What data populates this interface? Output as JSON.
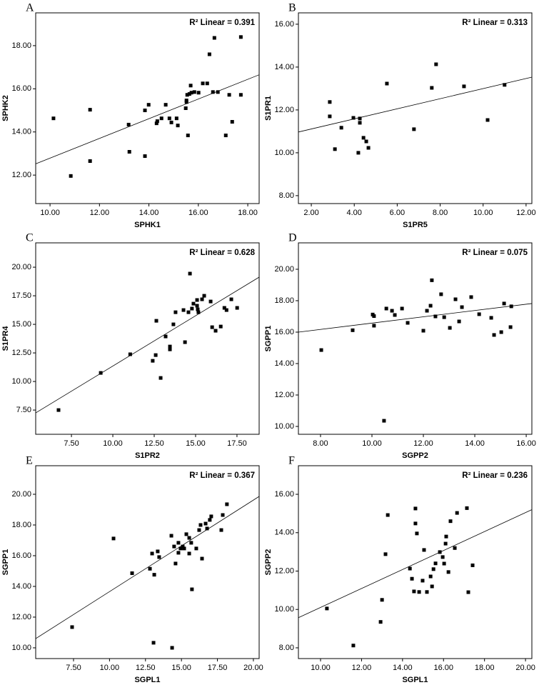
{
  "chart_data": [
    {
      "type": "scatter",
      "title": "A",
      "xlabel": "SPHK1",
      "ylabel": "SPHK2",
      "annotation": "R² Linear = 0.391",
      "color": "#000000",
      "x": [
        10.14,
        10.84,
        11.62,
        11.62,
        13.18,
        13.21,
        13.84,
        13.84,
        13.99,
        14.31,
        14.34,
        14.51,
        14.68,
        14.83,
        14.91,
        15.12,
        15.17,
        15.49,
        15.52,
        15.52,
        15.55,
        15.58,
        15.64,
        15.69,
        15.72,
        15.84,
        16.01,
        16.18,
        16.36,
        16.45,
        16.59,
        16.65,
        16.79,
        17.11,
        17.25,
        17.37,
        17.72,
        17.72
      ],
      "y": [
        14.63,
        11.96,
        15.03,
        12.65,
        14.34,
        13.08,
        15.0,
        12.88,
        15.26,
        14.4,
        14.5,
        14.63,
        15.26,
        14.63,
        14.44,
        14.63,
        14.3,
        15.1,
        15.39,
        15.46,
        15.72,
        13.84,
        15.76,
        16.15,
        15.82,
        15.85,
        15.82,
        16.25,
        16.25,
        17.6,
        15.85,
        18.36,
        15.85,
        13.84,
        15.72,
        14.47,
        18.4,
        15.72
      ],
      "fit_line": {
        "x": [
          9.42,
          18.46
        ],
        "y": [
          12.52,
          16.65
        ]
      },
      "xlim": [
        9.42,
        18.46
      ],
      "ylim": [
        10.68,
        19.52
      ],
      "xticks": [
        {
          "value": 10,
          "label": "10.00"
        },
        {
          "value": 12,
          "label": "12.00"
        },
        {
          "value": 14,
          "label": "14.00"
        },
        {
          "value": 16,
          "label": "16.00"
        },
        {
          "value": 18,
          "label": "18.00"
        }
      ],
      "yticks": [
        {
          "value": 12,
          "label": "12.00"
        },
        {
          "value": 14,
          "label": "14.00"
        },
        {
          "value": 16,
          "label": "16.00"
        },
        {
          "value": 18,
          "label": "18.00"
        }
      ]
    },
    {
      "type": "scatter",
      "title": "B",
      "xlabel": "S1PR5",
      "ylabel": "S1PR1",
      "annotation": "R² Linear = 0.313",
      "color": "#000000",
      "x": [
        2.86,
        2.86,
        3.1,
        3.4,
        3.96,
        4.19,
        4.26,
        4.26,
        4.43,
        4.56,
        4.66,
        5.52,
        6.78,
        7.61,
        7.81,
        9.11,
        10.21,
        11.0
      ],
      "y": [
        12.37,
        11.7,
        10.17,
        11.17,
        11.63,
        10.0,
        11.6,
        11.4,
        10.7,
        10.53,
        10.23,
        13.23,
        11.1,
        13.03,
        14.13,
        13.1,
        11.53,
        13.17
      ],
      "fit_line": {
        "x": [
          1.4,
          12.27
        ],
        "y": [
          10.97,
          13.53
        ]
      },
      "xlim": [
        1.4,
        12.27
      ],
      "ylim": [
        7.63,
        16.53
      ],
      "xticks": [
        {
          "value": 2,
          "label": "2.00"
        },
        {
          "value": 4,
          "label": "4.00"
        },
        {
          "value": 6,
          "label": "6.00"
        },
        {
          "value": 8,
          "label": "8.00"
        },
        {
          "value": 10,
          "label": "10.00"
        },
        {
          "value": 12,
          "label": "12.00"
        }
      ],
      "yticks": [
        {
          "value": 8,
          "label": "8.00"
        },
        {
          "value": 10,
          "label": "10.00"
        },
        {
          "value": 12,
          "label": "12.00"
        },
        {
          "value": 14,
          "label": "14.00"
        },
        {
          "value": 16,
          "label": "16.00"
        }
      ]
    },
    {
      "type": "scatter",
      "title": "C",
      "xlabel": "S1PR2",
      "ylabel": "S1PR4",
      "annotation": "R² Linear = 0.628",
      "color": "#000000",
      "x": [
        6.72,
        9.27,
        11.05,
        12.41,
        12.59,
        12.63,
        12.89,
        13.19,
        13.45,
        13.45,
        13.66,
        13.79,
        14.27,
        14.36,
        14.57,
        14.66,
        14.78,
        14.87,
        15.09,
        15.09,
        15.13,
        15.17,
        15.39,
        15.52,
        15.91,
        16.0,
        16.21,
        16.52,
        16.74,
        16.87,
        17.16,
        17.51
      ],
      "y": [
        7.5,
        10.75,
        12.38,
        11.81,
        12.31,
        15.31,
        10.31,
        13.94,
        13.06,
        12.81,
        15.0,
        16.06,
        16.25,
        13.44,
        16.06,
        19.44,
        16.38,
        16.81,
        16.63,
        17.13,
        16.31,
        16.06,
        17.19,
        17.5,
        17.0,
        14.75,
        14.44,
        14.81,
        16.44,
        16.25,
        17.19,
        16.44
      ],
      "fit_line": {
        "x": [
          5.34,
          18.84
        ],
        "y": [
          7.25,
          19.13
        ]
      },
      "xlim": [
        5.34,
        18.84
      ],
      "ylim": [
        5.38,
        22.13
      ],
      "xticks": [
        {
          "value": 7.5,
          "label": "7.50"
        },
        {
          "value": 10,
          "label": "10.00"
        },
        {
          "value": 12.5,
          "label": "12.50"
        },
        {
          "value": 15,
          "label": "15.00"
        },
        {
          "value": 17.5,
          "label": "17.50"
        }
      ],
      "yticks": [
        {
          "value": 7.5,
          "label": "7.50"
        },
        {
          "value": 10,
          "label": "10.00"
        },
        {
          "value": 12.5,
          "label": "12.50"
        },
        {
          "value": 15,
          "label": "15.00"
        },
        {
          "value": 17.5,
          "label": "17.50"
        },
        {
          "value": 20,
          "label": "20.00"
        }
      ]
    },
    {
      "type": "scatter",
      "title": "D",
      "xlabel": "SGPP2",
      "ylabel": "SGPP1",
      "annotation": "R² Linear = 0.075",
      "color": "#000000",
      "x": [
        8.03,
        9.25,
        10.03,
        10.08,
        10.08,
        10.56,
        10.47,
        10.78,
        10.89,
        11.17,
        11.39,
        12.0,
        12.14,
        12.28,
        12.33,
        12.47,
        12.69,
        12.81,
        13.03,
        13.25,
        13.39,
        13.5,
        13.86,
        14.17,
        14.64,
        14.75,
        15.03,
        15.14,
        15.42,
        15.39
      ],
      "y": [
        14.86,
        16.12,
        17.12,
        17.02,
        16.41,
        17.5,
        10.36,
        17.36,
        17.09,
        17.5,
        16.59,
        16.09,
        17.36,
        17.68,
        19.3,
        17.0,
        18.41,
        16.95,
        16.27,
        18.09,
        16.68,
        17.59,
        18.23,
        17.14,
        16.91,
        15.82,
        16.0,
        17.82,
        17.64,
        16.32
      ],
      "fit_line": {
        "x": [
          7.14,
          16.22
        ],
        "y": [
          16.0,
          17.82
        ]
      },
      "xlim": [
        7.14,
        16.22
      ],
      "ylim": [
        9.5,
        21.68
      ],
      "xticks": [
        {
          "value": 8,
          "label": "8.00"
        },
        {
          "value": 10,
          "label": "10.00"
        },
        {
          "value": 12,
          "label": "12.00"
        },
        {
          "value": 14,
          "label": "14.00"
        },
        {
          "value": 16,
          "label": "16.00"
        }
      ],
      "yticks": [
        {
          "value": 10,
          "label": "10.00"
        },
        {
          "value": 12,
          "label": "12.00"
        },
        {
          "value": 14,
          "label": "14.00"
        },
        {
          "value": 16,
          "label": "16.00"
        },
        {
          "value": 18,
          "label": "18.00"
        },
        {
          "value": 20,
          "label": "20.00"
        }
      ]
    },
    {
      "type": "scatter",
      "title": "E",
      "xlabel": "SGPL1",
      "ylabel": "SGPP1",
      "annotation": "R² Linear = 0.367",
      "color": "#000000",
      "x": [
        7.4,
        10.28,
        11.57,
        12.81,
        12.96,
        13.11,
        13.06,
        13.35,
        13.45,
        14.3,
        14.35,
        14.49,
        14.59,
        14.79,
        14.79,
        14.94,
        15.09,
        15.19,
        15.34,
        15.54,
        15.54,
        15.68,
        15.73,
        16.03,
        16.23,
        16.33,
        16.43,
        16.68,
        16.78,
        16.97,
        17.07,
        17.77,
        17.87,
        18.16
      ],
      "y": [
        11.35,
        17.12,
        14.86,
        15.15,
        16.14,
        14.76,
        10.33,
        16.28,
        15.91,
        17.3,
        10.0,
        16.6,
        15.49,
        16.84,
        16.19,
        16.47,
        16.6,
        16.47,
        17.4,
        16.14,
        17.16,
        16.84,
        13.81,
        16.47,
        17.67,
        18.0,
        15.81,
        18.09,
        17.77,
        18.33,
        18.56,
        17.67,
        18.65,
        19.35
      ],
      "fit_line": {
        "x": [
          4.87,
          20.4
        ],
        "y": [
          10.6,
          19.86
        ]
      },
      "xlim": [
        4.87,
        20.4
      ],
      "ylim": [
        9.3,
        21.86
      ],
      "xticks": [
        {
          "value": 7.5,
          "label": "7.50"
        },
        {
          "value": 10,
          "label": "10.00"
        },
        {
          "value": 12.5,
          "label": "12.50"
        },
        {
          "value": 15,
          "label": "15.00"
        },
        {
          "value": 17.5,
          "label": "17.50"
        },
        {
          "value": 20,
          "label": "20.00"
        }
      ],
      "yticks": [
        {
          "value": 10,
          "label": "10.00"
        },
        {
          "value": 12,
          "label": "12.00"
        },
        {
          "value": 14,
          "label": "14.00"
        },
        {
          "value": 16,
          "label": "16.00"
        },
        {
          "value": 18,
          "label": "18.00"
        },
        {
          "value": 20,
          "label": "20.00"
        }
      ]
    },
    {
      "type": "scatter",
      "title": "F",
      "xlabel": "SGPL1",
      "ylabel": "SGPP2",
      "annotation": "R² Linear = 0.236",
      "color": "#000000",
      "x": [
        10.31,
        11.6,
        12.93,
        13.0,
        13.17,
        13.28,
        14.36,
        14.46,
        14.56,
        14.63,
        14.63,
        14.7,
        14.81,
        14.98,
        15.05,
        15.19,
        15.37,
        15.44,
        15.51,
        15.61,
        15.82,
        15.96,
        16.03,
        16.1,
        16.13,
        16.24,
        16.34,
        16.55,
        16.66,
        17.14,
        17.21,
        17.42
      ],
      "y": [
        10.05,
        8.12,
        9.35,
        10.5,
        12.88,
        14.92,
        12.13,
        11.6,
        10.94,
        15.26,
        14.48,
        13.96,
        10.91,
        11.5,
        13.1,
        10.91,
        11.72,
        11.2,
        12.1,
        12.4,
        12.99,
        12.73,
        12.39,
        13.43,
        13.8,
        11.95,
        14.6,
        13.2,
        15.03,
        15.28,
        10.9,
        12.3
      ],
      "fit_line": {
        "x": [
          8.92,
          20.31
        ],
        "y": [
          9.57,
          15.2
        ]
      },
      "xlim": [
        8.92,
        20.31
      ],
      "ylim": [
        7.44,
        17.49
      ],
      "xticks": [
        {
          "value": 10,
          "label": "10.00"
        },
        {
          "value": 12,
          "label": "12.00"
        },
        {
          "value": 14,
          "label": "14.00"
        },
        {
          "value": 16,
          "label": "16.00"
        },
        {
          "value": 18,
          "label": "18.00"
        },
        {
          "value": 20,
          "label": "20.00"
        }
      ],
      "yticks": [
        {
          "value": 8,
          "label": "8.00"
        },
        {
          "value": 10,
          "label": "10.00"
        },
        {
          "value": 12,
          "label": "12.00"
        },
        {
          "value": 14,
          "label": "14.00"
        },
        {
          "value": 16,
          "label": "16.00"
        }
      ]
    }
  ]
}
